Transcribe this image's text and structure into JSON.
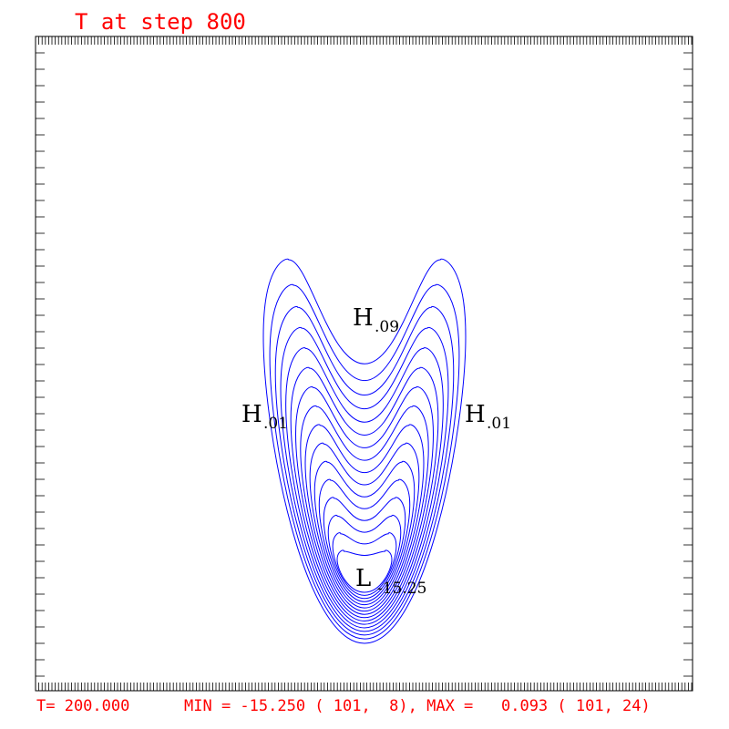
{
  "title": "T at step  800",
  "footer": {
    "time": "T= 200.000",
    "minmax": "MIN = -15.250 ( 101,  8), MAX =   0.093 ( 101, 24)"
  },
  "colors": {
    "text": "#ff0000",
    "contour": "#0000ff",
    "frame": "#000000"
  },
  "chart_data": {
    "type": "contour",
    "field": "T",
    "step": 800,
    "time": 200.0,
    "grid_x_range": [
      1,
      201
    ],
    "grid_y_range": [
      1,
      71
    ],
    "min": {
      "value": -15.25,
      "i": 101,
      "j": 8
    },
    "max": {
      "value": 0.093,
      "i": 101,
      "j": 24
    },
    "contour_count": 16,
    "labels": [
      {
        "kind": "H",
        "value": ".09"
      },
      {
        "kind": "H",
        "value": ".01"
      },
      {
        "kind": "H",
        "value": ".01"
      },
      {
        "kind": "L",
        "value": "-15.25"
      }
    ]
  }
}
